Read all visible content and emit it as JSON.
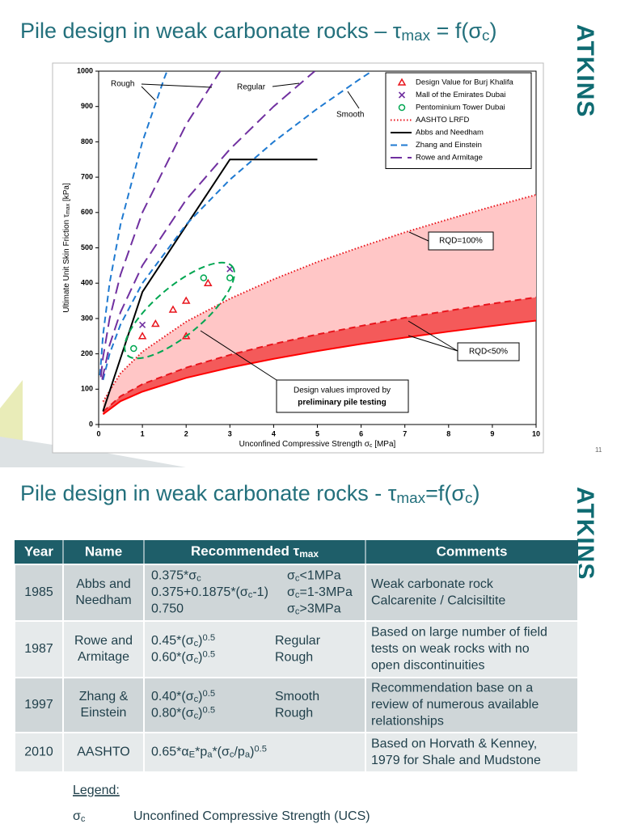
{
  "header": {
    "title": [
      "Pile design in weak carbonate rocks – τ",
      {
        "sub": "max"
      },
      " = f(σ",
      {
        "sub": "c"
      },
      ")"
    ],
    "logo": "ATKINS",
    "page_number": "11"
  },
  "chart_data": {
    "type": "line",
    "grid": false,
    "x_label": [
      "Unconfined Compressive Strength σ",
      {
        "sub": "c"
      },
      " [MPa]"
    ],
    "y_label": [
      "Ultimate Unit Skin Friction τ",
      {
        "sub": "max"
      },
      " [kPa]"
    ],
    "xlim": [
      0,
      10
    ],
    "xticks": [
      0,
      1,
      2,
      3,
      4,
      5,
      6,
      7,
      8,
      9,
      10
    ],
    "ylim": [
      0,
      1000
    ],
    "yticks": [
      0,
      100,
      200,
      300,
      400,
      500,
      600,
      700,
      800,
      900,
      1000
    ],
    "legend": "upper right",
    "annotations": [
      "Rough",
      "Regular",
      "Smooth",
      "RQD=100%",
      "RQD<50%",
      "Design values improved by",
      "preliminary pile testing"
    ],
    "series": [
      {
        "name": "Design Value for Burj Khalifa",
        "type": "scatter",
        "marker": "triangle",
        "color": "#e8141c",
        "x": [
          1,
          1.3,
          1.7,
          2,
          2,
          2.5
        ],
        "values": [
          250,
          285,
          325,
          350,
          250,
          400
        ]
      },
      {
        "name": "Mall of the Emirates Dubai",
        "type": "scatter",
        "marker": "x",
        "color": "#7030a0",
        "x": [
          1,
          3
        ],
        "values": [
          282,
          440
        ]
      },
      {
        "name": "Pentominium Tower Dubai",
        "type": "scatter",
        "marker": "circle",
        "color": "#00a651",
        "x": [
          0.8,
          2.4,
          3
        ],
        "values": [
          215,
          415,
          415
        ]
      },
      {
        "name": "AASHTO LRFD",
        "type": "line",
        "dash": "dotted",
        "color": "#e8141c",
        "fill": "#ffc6c6",
        "x": [
          0.1,
          0.5,
          1,
          2,
          3,
          4,
          5,
          6,
          7,
          8,
          9,
          10
        ],
        "values": [
          65,
          145,
          206,
          291,
          356,
          411,
          460,
          503,
          544,
          581,
          617,
          650
        ]
      },
      {
        "type": "line",
        "dash": "dashed",
        "color": "#e8141c",
        "fill": "#f45a5a",
        "x": [
          0.1,
          0.5,
          1,
          2,
          3,
          4,
          5,
          6,
          7,
          8,
          9,
          10
        ],
        "values": [
          36,
          80,
          114,
          161,
          197,
          228,
          255,
          279,
          302,
          322,
          342,
          360
        ]
      },
      {
        "type": "line",
        "dash": "solid",
        "color": "#ff0000",
        "x": [
          0.1,
          0.5,
          1,
          2,
          3,
          4,
          5,
          6,
          7,
          8,
          9,
          10
        ],
        "values": [
          29,
          66,
          93,
          132,
          161,
          186,
          208,
          228,
          246,
          263,
          279,
          294
        ]
      },
      {
        "name": "Abbs and Needham",
        "type": "line",
        "dash": "solid",
        "color": "#000000",
        "x": [
          0.1,
          1,
          3,
          5
        ],
        "values": [
          37.5,
          375,
          750,
          750
        ]
      },
      {
        "name": "Zhang and Einstein",
        "type": "line",
        "dash": "dashed",
        "color": "#1f7ad1",
        "x": [
          0.1,
          0.25,
          0.5,
          1,
          2,
          3,
          4,
          5,
          6,
          6.25
        ],
        "values": [
          126,
          200,
          283,
          400,
          566,
          693,
          800,
          894,
          980,
          1000
        ]
      },
      {
        "type": "line",
        "dash": "dashed",
        "color": "#1f7ad1",
        "x": [
          0.03,
          0.1,
          0.25,
          0.5,
          1,
          1.5,
          1.56
        ],
        "values": [
          139,
          253,
          400,
          566,
          800,
          980,
          999
        ]
      },
      {
        "name": "Rowe and Armitage",
        "type": "line",
        "dash": "long-dash",
        "color": "#7030a0",
        "x": [
          0.08,
          0.25,
          0.5,
          1,
          2,
          3,
          4,
          4.94
        ],
        "values": [
          127,
          225,
          318,
          450,
          636,
          779,
          900,
          1000
        ]
      },
      {
        "type": "line",
        "dash": "long-dash",
        "color": "#7030a0",
        "x": [
          0.05,
          0.1,
          0.25,
          0.5,
          1,
          2,
          2.78
        ],
        "values": [
          134,
          190,
          300,
          424,
          600,
          849,
          1000
        ]
      }
    ]
  },
  "table_slide": {
    "title": [
      "Pile design in weak carbonate rocks - τ",
      {
        "sub": "max"
      },
      "=f(σ",
      {
        "sub": "c"
      },
      ")"
    ],
    "logo": "ATKINS",
    "columns": [
      "Year",
      "Name",
      [
        "Recommended τ",
        {
          "sub": "max"
        }
      ],
      "Comments"
    ],
    "rows": [
      {
        "year": "1985",
        "name": [
          "Abbs and",
          "Needham"
        ],
        "formulas": [
          [
            [
              "0.375*σ",
              {
                "sub": "c"
              }
            ],
            [
              "σ",
              {
                "sub": "c"
              },
              "<1MPa"
            ]
          ],
          [
            [
              "0.375+0.1875*(σ",
              {
                "sub": "c"
              },
              "-1)"
            ],
            [
              "σ",
              {
                "sub": "c"
              },
              "=1-3MPa"
            ]
          ],
          [
            [
              "0.750"
            ],
            [
              "σ",
              {
                "sub": "c"
              },
              ">3MPa"
            ]
          ]
        ],
        "comments": [
          "Weak carbonate rock",
          "Calcarenite / Calcisiltite"
        ]
      },
      {
        "year": "1987",
        "name": [
          "Rowe and",
          "Armitage"
        ],
        "formulas": [
          [
            [
              "0.45*(σ",
              {
                "sub": "c"
              },
              ")",
              {
                "sup": "0.5"
              }
            ],
            [
              "Regular"
            ]
          ],
          [
            [
              "0.60*(σ",
              {
                "sub": "c"
              },
              ")",
              {
                "sup": "0.5"
              }
            ],
            [
              "Rough"
            ]
          ]
        ],
        "comments": [
          "Based on large number of field",
          "tests on weak rocks with no",
          "open discontinuities"
        ]
      },
      {
        "year": "1997",
        "name": [
          "Zhang &",
          "Einstein"
        ],
        "formulas": [
          [
            [
              "0.40*(σ",
              {
                "sub": "c"
              },
              ")",
              {
                "sup": "0.5"
              }
            ],
            [
              "Smooth"
            ]
          ],
          [
            [
              "0.80*(σ",
              {
                "sub": "c"
              },
              ")",
              {
                "sup": "0.5"
              }
            ],
            [
              "Rough"
            ]
          ]
        ],
        "comments": [
          "Recommendation base on a",
          "review of numerous available",
          "relationships"
        ]
      },
      {
        "year": "2010",
        "name": [
          "AASHTO"
        ],
        "formulas": [
          [
            [
              "0.65*α",
              {
                "sub": "E"
              },
              "*p",
              {
                "sub": "a"
              },
              "*(σ",
              {
                "sub": "c"
              },
              "/p",
              {
                "sub": "a"
              },
              ")",
              {
                "sup": "0.5"
              }
            ]
          ]
        ],
        "comments": [
          "Based on Horvath & Kenney,",
          "1979 for Shale and Mudstone"
        ]
      }
    ],
    "legend_title": "Legend:",
    "legend": [
      {
        "symbol": [
          "σ",
          {
            "sub": "c"
          }
        ],
        "text": "Unconfined Compressive Strength (UCS)"
      }
    ]
  }
}
